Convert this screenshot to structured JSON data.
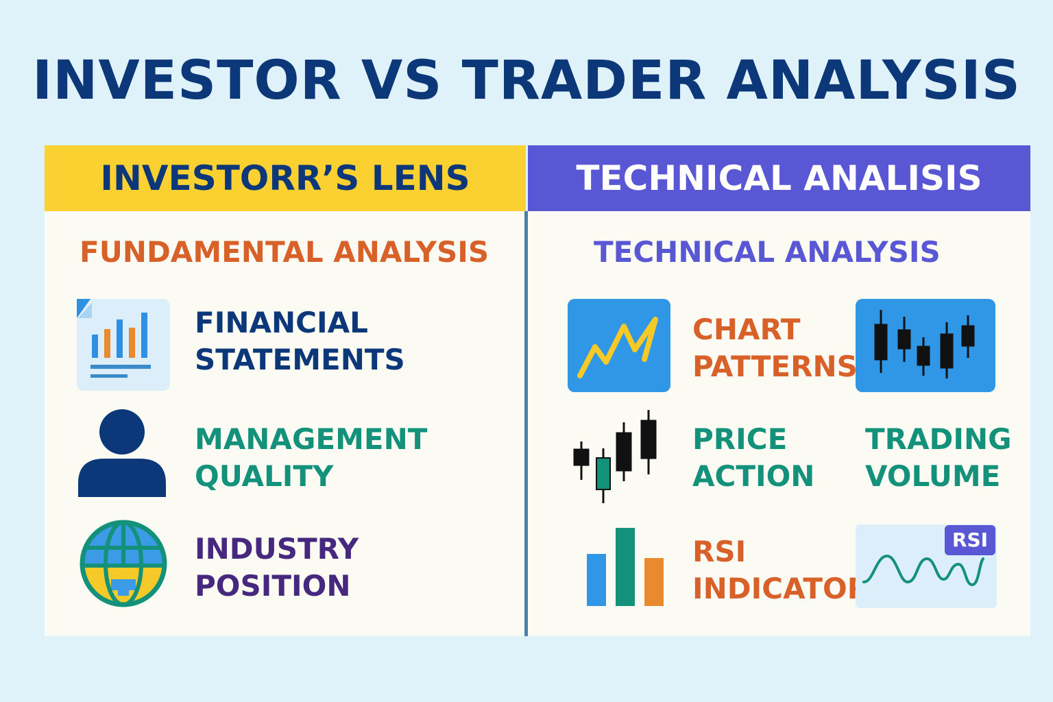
{
  "title": "INVESTOR VS TRADER ANALYSIS",
  "left_panel": {
    "header": "INVESTORR’S LENS",
    "subheading": "FUNDAMENTAL ANALYSIS",
    "items": [
      {
        "line1": "FINANCIAL",
        "line2": "STATEMENTS",
        "icon": "financial-report-icon"
      },
      {
        "line1": "MANAGEMENT",
        "line2": "QUALITY",
        "icon": "person-icon"
      },
      {
        "line1": "INDUSTRY",
        "line2": "POSITION",
        "icon": "globe-icon"
      }
    ]
  },
  "right_panel": {
    "header": "TECHNICAL ANALISIS",
    "subheading": "TECHNICAL ANALYSIS",
    "items": [
      {
        "line1": "CHART",
        "line2": "PATTERNS",
        "icon": "line-chart-icon"
      },
      {
        "line1": "PRICE",
        "line2": "ACTION",
        "icon": "candlestick-icon"
      },
      {
        "line1": "TRADING",
        "line2": "VOLUME",
        "icon": "candlestick-chart-icon"
      },
      {
        "line1": "RSI",
        "line2": "INDICATOR",
        "icon": "bar-chart-icon"
      }
    ],
    "rsi_badge": "RSI"
  },
  "colors": {
    "background": "#dff1f9",
    "title": "#0c3879",
    "left_header_bg": "#fbd131",
    "right_header_bg": "#5a57d4",
    "fundamental": "#d8612a",
    "technical": "#5a57d4",
    "green": "#14917a",
    "purple": "#46287e",
    "navy": "#0c3879",
    "orange": "#d8612a"
  }
}
